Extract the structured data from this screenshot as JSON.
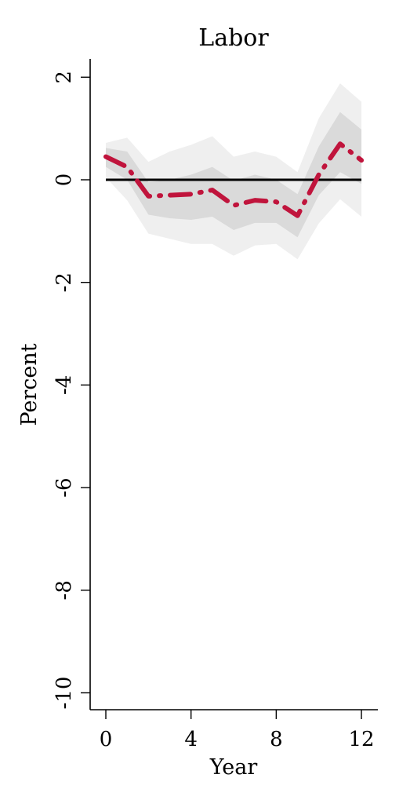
{
  "chart_data": {
    "type": "line",
    "title": "Labor",
    "xlabel": "Year",
    "ylabel": "Percent",
    "xlim": [
      -1.5,
      12.8
    ],
    "ylim": [
      -10.3,
      2.1
    ],
    "xticks": [
      0,
      4,
      8,
      12
    ],
    "yticks": [
      2,
      0,
      -2,
      -4,
      -6,
      -8,
      -10
    ],
    "grid": false,
    "legend": "none",
    "x": [
      0,
      1,
      2,
      3,
      4,
      5,
      6,
      7,
      8,
      9,
      10,
      11,
      12
    ],
    "series": [
      {
        "role": "estimate",
        "style": "dash-dot",
        "color": "#c0143c",
        "values": [
          0.45,
          0.25,
          -0.32,
          -0.3,
          -0.28,
          -0.2,
          -0.5,
          -0.4,
          -0.43,
          -0.7,
          0.1,
          0.7,
          0.38
        ]
      },
      {
        "role": "zero-line",
        "color": "#000000",
        "values": [
          0,
          0,
          0,
          0,
          0,
          0,
          0,
          0,
          0,
          0,
          0,
          0,
          0
        ]
      }
    ],
    "bands": [
      {
        "level": "outer",
        "color": "#efefef",
        "lower": [
          0.05,
          -0.4,
          -1.05,
          -1.15,
          -1.25,
          -1.25,
          -1.48,
          -1.28,
          -1.25,
          -1.55,
          -0.85,
          -0.38,
          -0.72
        ],
        "upper": [
          0.72,
          0.82,
          0.35,
          0.55,
          0.68,
          0.85,
          0.45,
          0.55,
          0.45,
          0.15,
          1.2,
          1.88,
          1.52
        ]
      },
      {
        "level": "inner",
        "color": "#dadada",
        "lower": [
          0.25,
          0.0,
          -0.68,
          -0.75,
          -0.78,
          -0.72,
          -0.98,
          -0.84,
          -0.84,
          -1.12,
          -0.3,
          0.15,
          -0.08
        ],
        "upper": [
          0.62,
          0.55,
          -0.05,
          0.0,
          0.1,
          0.25,
          -0.02,
          0.1,
          0.0,
          -0.28,
          0.65,
          1.32,
          0.98
        ]
      }
    ]
  }
}
